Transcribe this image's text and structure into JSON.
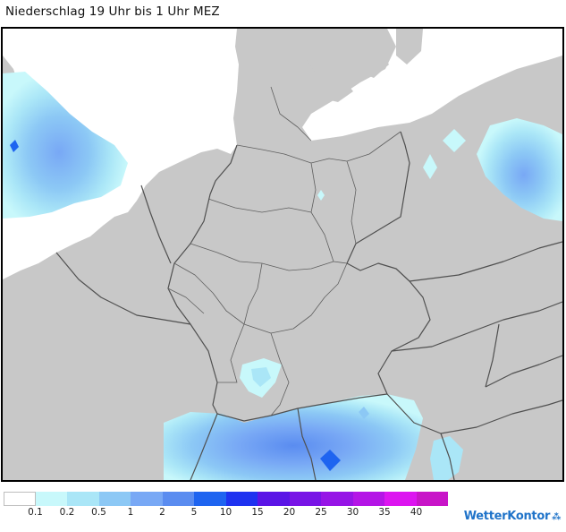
{
  "title": "Niederschlag 19 Uhr bis 1 Uhr MEZ",
  "map": {
    "land_color": "#c8c8c8",
    "sea_color": "#ffffff",
    "border_color": "#505050"
  },
  "legend": {
    "swatches": [
      "#ffffff",
      "#c8f8fb",
      "#aae6f7",
      "#8cc8f5",
      "#78a8f5",
      "#5a8cf0",
      "#1e64f0",
      "#1e32f0",
      "#5a14e6",
      "#7814e6",
      "#9614e6",
      "#b414e6",
      "#dc14f0",
      "#c814c8"
    ],
    "labels": [
      "0.1",
      "0.2",
      "0.5",
      "1",
      "2",
      "5",
      "10",
      "15",
      "20",
      "25",
      "30",
      "35",
      "40"
    ]
  },
  "brand": {
    "name": "WetterKontor",
    "icon": "rain-drops-icon"
  }
}
